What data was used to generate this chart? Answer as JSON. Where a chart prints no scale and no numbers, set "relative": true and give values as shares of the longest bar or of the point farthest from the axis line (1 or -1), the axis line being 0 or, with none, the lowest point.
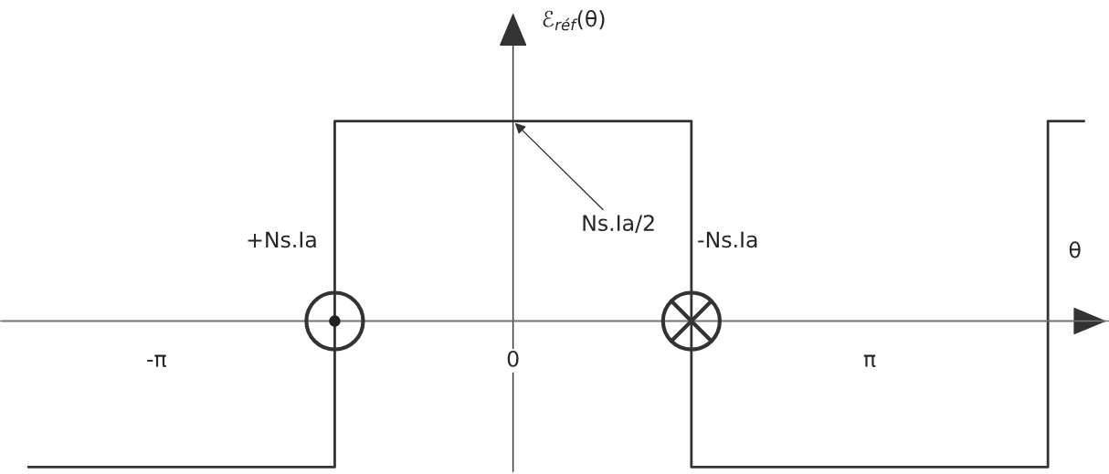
{
  "chart_data": {
    "type": "step",
    "relative": true,
    "xlabel": "θ",
    "ylabel": "ℰ$_{réf}$(θ)",
    "x": [
      -4.27,
      -1.571,
      1.571,
      4.712,
      5.03
    ],
    "series": [
      {
        "color": "#333333",
        "values": [
          -0.73,
          1,
          -0.73,
          1,
          1
        ]
      }
    ],
    "xlim": [
      -4.52,
      5.25
    ],
    "xticks": [
      {
        "value": -3.1416,
        "label": "-π"
      },
      0,
      {
        "value": 3.1416,
        "label": "π"
      }
    ],
    "annotations": [
      "+Ns.Ia",
      "-Ns.Ia",
      {
        "text": "Ns.Ia/2",
        "x": 0,
        "y": 1
      }
    ],
    "grid": false,
    "legend": false
  }
}
